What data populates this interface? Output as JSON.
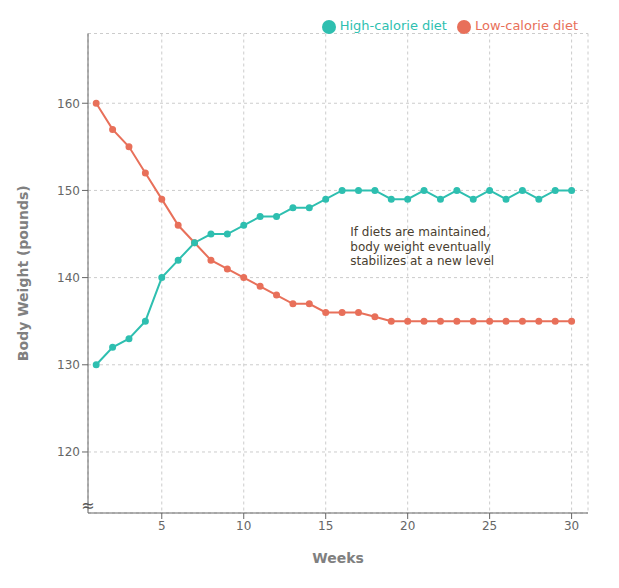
{
  "chart_data": {
    "type": "line",
    "x": [
      1,
      2,
      3,
      4,
      5,
      6,
      7,
      8,
      9,
      10,
      11,
      12,
      13,
      14,
      15,
      16,
      17,
      18,
      19,
      20,
      21,
      22,
      23,
      24,
      25,
      26,
      27,
      28,
      29,
      30
    ],
    "series": [
      {
        "name": "Low-calorie diet",
        "color": "#E8705A",
        "values": [
          160,
          157,
          155,
          152,
          149,
          146,
          144,
          142,
          141,
          140,
          139,
          138,
          137,
          137,
          136,
          136,
          136,
          135.5,
          135,
          135,
          135,
          135,
          135,
          135,
          135,
          135,
          135,
          135,
          135,
          135
        ]
      },
      {
        "name": "High-calorie diet",
        "color": "#2EBFB0",
        "values": [
          130,
          132,
          133,
          135,
          140,
          142,
          144,
          145,
          145,
          146,
          147,
          147,
          148,
          148,
          149,
          150,
          150,
          150,
          149,
          149,
          150,
          149,
          150,
          149,
          150,
          149,
          150,
          149,
          150,
          150
        ]
      }
    ],
    "x_label": "Weeks",
    "y_label": "Body Weight (pounds)",
    "xlim": [
      0.5,
      31
    ],
    "ylim": [
      113,
      168
    ],
    "xticks": [
      5,
      10,
      15,
      20,
      25,
      30
    ],
    "yticks": [
      120,
      130,
      140,
      150,
      160
    ],
    "grid": true,
    "legend": "upper right",
    "marker": "circle",
    "annotations": [
      {
        "text": "If diets are maintained,\nbody weight eventually\nstabilizes at a new level",
        "x": 16.5,
        "y": 146,
        "color": "#4A4030"
      },
      {
        "text": "≈"
      }
    ]
  }
}
